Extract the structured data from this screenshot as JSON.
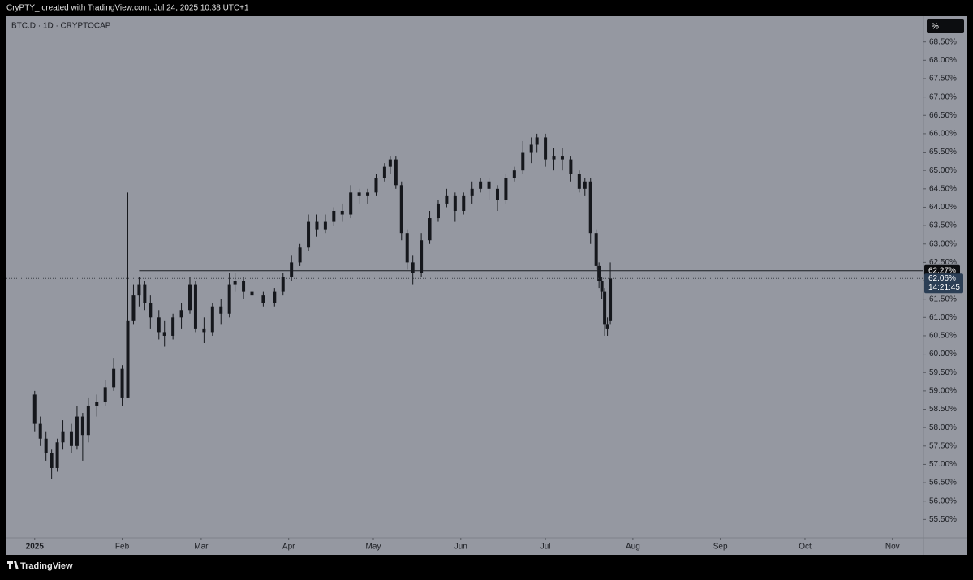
{
  "header": {
    "text": "CryPTY_ created with TradingView.com, Jul 24, 2025 10:38 UTC+1"
  },
  "footer": {
    "brand": "TradingView"
  },
  "chart_data": {
    "type": "candlestick",
    "title": "BTC.D · 1D · CRYPTOCAP",
    "axis_unit": "%",
    "color": "#15171c",
    "x": [
      "2025-01-01",
      "2025-01-03",
      "2025-01-05",
      "2025-01-07",
      "2025-01-09",
      "2025-01-11",
      "2025-01-14",
      "2025-01-16",
      "2025-01-18",
      "2025-01-20",
      "2025-01-23",
      "2025-01-26",
      "2025-01-29",
      "2025-02-01",
      "2025-02-03",
      "2025-02-05",
      "2025-02-07",
      "2025-02-09",
      "2025-02-11",
      "2025-02-14",
      "2025-02-16",
      "2025-02-19",
      "2025-02-22",
      "2025-02-25",
      "2025-02-27",
      "2025-03-02",
      "2025-03-05",
      "2025-03-08",
      "2025-03-11",
      "2025-03-13",
      "2025-03-16",
      "2025-03-19",
      "2025-03-23",
      "2025-03-27",
      "2025-03-30",
      "2025-04-02",
      "2025-04-05",
      "2025-04-08",
      "2025-04-11",
      "2025-04-14",
      "2025-04-17",
      "2025-04-20",
      "2025-04-23",
      "2025-04-26",
      "2025-04-29",
      "2025-05-02",
      "2025-05-05",
      "2025-05-07",
      "2025-05-09",
      "2025-05-11",
      "2025-05-13",
      "2025-05-15",
      "2025-05-18",
      "2025-05-21",
      "2025-05-24",
      "2025-05-27",
      "2025-05-30",
      "2025-06-02",
      "2025-06-05",
      "2025-06-08",
      "2025-06-11",
      "2025-06-14",
      "2025-06-17",
      "2025-06-20",
      "2025-06-23",
      "2025-06-26",
      "2025-06-28",
      "2025-07-01",
      "2025-07-04",
      "2025-07-07",
      "2025-07-10",
      "2025-07-13",
      "2025-07-15",
      "2025-07-17",
      "2025-07-19",
      "2025-07-20",
      "2025-07-21",
      "2025-07-22",
      "2025-07-23",
      "2025-07-24"
    ],
    "open": [
      58.9,
      58.1,
      57.7,
      57.3,
      56.9,
      57.6,
      57.9,
      57.5,
      58.3,
      57.8,
      58.6,
      58.7,
      59.1,
      59.6,
      58.8,
      60.9,
      61.6,
      61.9,
      61.4,
      61.0,
      60.6,
      60.5,
      61.0,
      61.2,
      61.9,
      60.7,
      60.6,
      61.3,
      61.1,
      61.9,
      62.0,
      61.7,
      61.6,
      61.4,
      61.7,
      62.1,
      62.5,
      62.9,
      63.6,
      63.4,
      63.6,
      63.9,
      63.8,
      64.4,
      64.3,
      64.4,
      64.8,
      65.1,
      65.3,
      64.6,
      63.3,
      62.5,
      62.2,
      63.1,
      63.7,
      64.1,
      64.3,
      63.9,
      64.3,
      64.5,
      64.7,
      64.5,
      64.2,
      64.8,
      65.0,
      65.5,
      65.7,
      65.9,
      65.3,
      65.4,
      65.3,
      64.9,
      64.5,
      64.7,
      63.3,
      62.4,
      62.0,
      61.7,
      60.8,
      60.9
    ],
    "high": [
      59.0,
      58.3,
      57.9,
      57.4,
      57.7,
      58.2,
      58.1,
      58.6,
      58.4,
      58.8,
      58.9,
      59.3,
      59.9,
      59.7,
      64.4,
      61.9,
      62.1,
      62.0,
      61.6,
      61.2,
      60.9,
      61.1,
      61.4,
      62.1,
      62.0,
      61.0,
      61.4,
      61.5,
      62.2,
      62.2,
      62.1,
      61.8,
      61.7,
      61.8,
      62.2,
      62.7,
      63.0,
      63.8,
      63.8,
      63.8,
      64.0,
      64.1,
      64.6,
      64.5,
      64.5,
      64.9,
      65.2,
      65.4,
      65.4,
      64.7,
      63.4,
      62.7,
      63.3,
      63.9,
      64.2,
      64.5,
      64.4,
      64.4,
      64.7,
      64.8,
      64.8,
      64.6,
      64.9,
      65.1,
      65.8,
      65.9,
      66.0,
      66.0,
      65.6,
      65.6,
      65.4,
      65.0,
      64.8,
      64.8,
      63.4,
      62.5,
      62.1,
      61.8,
      61.0,
      62.5
    ],
    "low": [
      57.9,
      57.5,
      57.1,
      56.6,
      56.8,
      57.4,
      57.3,
      57.4,
      57.1,
      57.6,
      58.3,
      58.6,
      59.0,
      58.6,
      58.8,
      60.8,
      61.3,
      61.2,
      60.7,
      60.4,
      60.2,
      60.4,
      60.7,
      61.1,
      60.6,
      60.3,
      60.5,
      60.8,
      61.0,
      61.7,
      61.5,
      61.4,
      61.3,
      61.3,
      61.6,
      62.0,
      62.4,
      62.8,
      63.2,
      63.3,
      63.5,
      63.6,
      63.7,
      64.1,
      64.1,
      64.3,
      64.7,
      64.9,
      64.5,
      63.1,
      62.3,
      61.9,
      62.1,
      63.0,
      63.6,
      64.0,
      63.6,
      63.8,
      64.1,
      64.4,
      64.2,
      63.9,
      64.1,
      64.7,
      64.9,
      65.2,
      65.5,
      65.1,
      65.0,
      65.0,
      64.7,
      64.4,
      64.3,
      63.0,
      62.3,
      61.8,
      61.5,
      60.5,
      60.5,
      60.8
    ],
    "close": [
      58.1,
      57.7,
      57.3,
      56.9,
      57.6,
      57.9,
      57.5,
      58.3,
      57.8,
      58.6,
      58.7,
      59.1,
      59.6,
      58.8,
      60.9,
      61.6,
      61.9,
      61.4,
      61.0,
      60.6,
      60.5,
      61.0,
      61.2,
      61.9,
      60.7,
      60.6,
      61.3,
      61.1,
      61.9,
      62.0,
      61.7,
      61.6,
      61.4,
      61.7,
      62.1,
      62.5,
      62.9,
      63.6,
      63.4,
      63.6,
      63.9,
      63.8,
      64.4,
      64.3,
      64.4,
      64.8,
      65.1,
      65.3,
      64.6,
      63.3,
      62.5,
      62.2,
      63.1,
      63.7,
      64.1,
      64.3,
      63.9,
      64.3,
      64.5,
      64.7,
      64.5,
      64.2,
      64.8,
      65.0,
      65.5,
      65.7,
      65.9,
      65.3,
      65.4,
      65.3,
      64.9,
      64.5,
      64.7,
      63.3,
      62.4,
      62.0,
      61.7,
      60.8,
      60.7,
      62.06
    ],
    "xlim": [
      "2024-12-22",
      "2025-11-12"
    ],
    "xticks": [
      {
        "value": "2025-01-01",
        "label": "2025"
      },
      {
        "value": "2025-02-01",
        "label": "Feb"
      },
      {
        "value": "2025-03-01",
        "label": "Mar"
      },
      {
        "value": "2025-04-01",
        "label": "Apr"
      },
      {
        "value": "2025-05-01",
        "label": "May"
      },
      {
        "value": "2025-06-01",
        "label": "Jun"
      },
      {
        "value": "2025-07-01",
        "label": "Jul"
      },
      {
        "value": "2025-08-01",
        "label": "Aug"
      },
      {
        "value": "2025-09-01",
        "label": "Sep"
      },
      {
        "value": "2025-10-01",
        "label": "Oct"
      },
      {
        "value": "2025-11-01",
        "label": "Nov"
      }
    ],
    "ylim": [
      55.0,
      69.2
    ],
    "yticks": [
      {
        "value": 55.5,
        "label": "55.50%"
      },
      {
        "value": 56,
        "label": "56.00%"
      },
      {
        "value": 56.5,
        "label": "56.50%"
      },
      {
        "value": 57,
        "label": "57.00%"
      },
      {
        "value": 57.5,
        "label": "57.50%"
      },
      {
        "value": 58,
        "label": "58.00%"
      },
      {
        "value": 58.5,
        "label": "58.50%"
      },
      {
        "value": 59,
        "label": "59.00%"
      },
      {
        "value": 59.5,
        "label": "59.50%"
      },
      {
        "value": 60,
        "label": "60.00%"
      },
      {
        "value": 60.5,
        "label": "60.50%"
      },
      {
        "value": 61,
        "label": "61.00%"
      },
      {
        "value": 61.5,
        "label": "61.50%"
      },
      {
        "value": 62,
        "label": "62.00%"
      },
      {
        "value": 62.5,
        "label": "62.50%"
      },
      {
        "value": 63,
        "label": "63.00%"
      },
      {
        "value": 63.5,
        "label": "63.50%"
      },
      {
        "value": 64,
        "label": "64.00%"
      },
      {
        "value": 64.5,
        "label": "64.50%"
      },
      {
        "value": 65,
        "label": "65.00%"
      },
      {
        "value": 65.5,
        "label": "65.50%"
      },
      {
        "value": 66,
        "label": "66.00%"
      },
      {
        "value": 66.5,
        "label": "66.50%"
      },
      {
        "value": 67,
        "label": "67.00%"
      },
      {
        "value": 67.5,
        "label": "67.50%"
      },
      {
        "value": 68,
        "label": "68.00%"
      },
      {
        "value": 68.5,
        "label": "68.50%"
      }
    ],
    "price_line": {
      "value": 62.27,
      "label": "62.27%",
      "start": "2025-02-07"
    },
    "last_price": {
      "value": 62.06,
      "label": "62.06%",
      "countdown": "14:21:45"
    }
  }
}
